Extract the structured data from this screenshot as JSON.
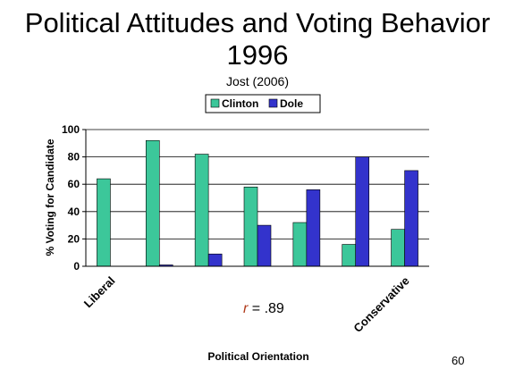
{
  "title_line1": "Political Attitudes and Voting Behavior",
  "title_line2": "1996",
  "subtitle": "Jost (2006)",
  "slide_number": "60",
  "chart_data": {
    "type": "bar",
    "categories": [
      "Liberal",
      "",
      "",
      "",
      "",
      "",
      "Conservative"
    ],
    "series": [
      {
        "name": "Clinton",
        "color": "#3cc79a",
        "values": [
          64,
          92,
          82,
          58,
          32,
          16,
          27
        ]
      },
      {
        "name": "Dole",
        "color": "#3333cc",
        "values": [
          0,
          1,
          9,
          30,
          56,
          80,
          70
        ]
      }
    ],
    "ylabel": "% Voting for Candidate",
    "xlabel": "Political Orientation",
    "ylim": [
      0,
      100
    ],
    "yticks": [
      0,
      20,
      40,
      60,
      80,
      100
    ],
    "grid": true,
    "legend_position": "top",
    "annotation": {
      "var": "r",
      "text": " = .89",
      "color": "#b03a1a"
    }
  }
}
